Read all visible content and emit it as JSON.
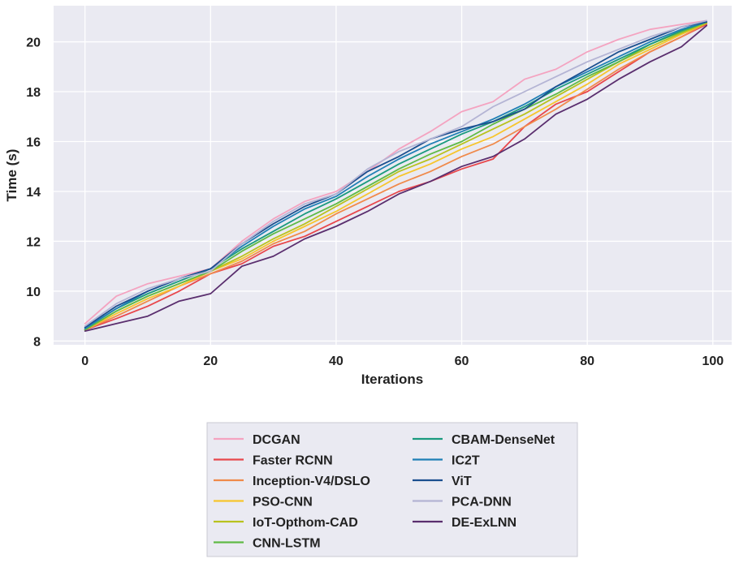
{
  "chart_data": {
    "type": "line",
    "title": "",
    "xlabel": "Iterations",
    "ylabel": "Time (s)",
    "xlim": [
      -5,
      103
    ],
    "ylim": [
      7.85,
      21.45
    ],
    "xticks": [
      0,
      20,
      40,
      60,
      80,
      100
    ],
    "yticks": [
      8,
      10,
      12,
      14,
      16,
      18,
      20
    ],
    "grid": true,
    "legend_position": "bottom-center",
    "legend_columns": 2,
    "x": [
      0,
      5,
      10,
      15,
      20,
      25,
      30,
      35,
      40,
      45,
      50,
      55,
      60,
      65,
      70,
      75,
      80,
      85,
      90,
      95,
      99
    ],
    "series": [
      {
        "name": "DCGAN",
        "color": "#f4a3c0",
        "values": [
          8.7,
          9.8,
          10.3,
          10.6,
          10.9,
          12.0,
          12.9,
          13.6,
          14.0,
          14.8,
          15.7,
          16.4,
          17.2,
          17.6,
          18.5,
          18.9,
          19.6,
          20.1,
          20.5,
          20.7,
          20.85
        ]
      },
      {
        "name": "Faster RCNN",
        "color": "#e8474c",
        "values": [
          8.45,
          8.9,
          9.4,
          10.0,
          10.7,
          11.1,
          11.8,
          12.2,
          12.8,
          13.4,
          14.0,
          14.4,
          14.9,
          15.3,
          16.6,
          17.5,
          18.0,
          18.8,
          19.6,
          20.2,
          20.7
        ]
      },
      {
        "name": "Inception-V4/DSLO",
        "color": "#f08a4b",
        "values": [
          8.45,
          9.0,
          9.6,
          10.2,
          10.7,
          11.2,
          11.9,
          12.4,
          13.1,
          13.7,
          14.3,
          14.8,
          15.4,
          15.9,
          16.6,
          17.3,
          18.1,
          18.9,
          19.6,
          20.2,
          20.75
        ]
      },
      {
        "name": "PSO-CNN",
        "color": "#f7c52c",
        "values": [
          8.45,
          9.1,
          9.7,
          10.2,
          10.8,
          11.3,
          12.0,
          12.6,
          13.2,
          13.9,
          14.6,
          15.1,
          15.7,
          16.2,
          16.9,
          17.6,
          18.3,
          19.1,
          19.7,
          20.3,
          20.75
        ]
      },
      {
        "name": "IoT-Opthom-CAD",
        "color": "#b8c21e",
        "values": [
          8.45,
          9.2,
          9.8,
          10.3,
          10.8,
          11.4,
          12.1,
          12.7,
          13.4,
          14.1,
          14.8,
          15.3,
          15.9,
          16.5,
          17.1,
          17.8,
          18.5,
          19.2,
          19.8,
          20.35,
          20.75
        ]
      },
      {
        "name": "CNN-LSTM",
        "color": "#5fba46",
        "values": [
          8.45,
          9.2,
          9.8,
          10.3,
          10.8,
          11.6,
          12.3,
          12.9,
          13.5,
          14.2,
          14.9,
          15.5,
          16.0,
          16.7,
          17.3,
          17.9,
          18.6,
          19.2,
          19.9,
          20.4,
          20.8
        ]
      },
      {
        "name": "CBAM-DenseNet",
        "color": "#1a9a7e",
        "values": [
          8.5,
          9.3,
          9.9,
          10.4,
          10.9,
          11.7,
          12.4,
          13.1,
          13.7,
          14.4,
          15.1,
          15.7,
          16.3,
          16.8,
          17.4,
          18.1,
          18.7,
          19.3,
          19.9,
          20.45,
          20.8
        ]
      },
      {
        "name": "IC2T",
        "color": "#1f7fb5",
        "values": [
          8.5,
          9.3,
          10.0,
          10.5,
          10.9,
          11.8,
          12.6,
          13.3,
          13.8,
          14.6,
          15.3,
          15.9,
          16.4,
          16.9,
          17.5,
          18.2,
          18.8,
          19.4,
          20.0,
          20.5,
          20.8
        ]
      },
      {
        "name": "ViT",
        "color": "#1b4f8f",
        "values": [
          8.55,
          9.4,
          10.0,
          10.5,
          10.9,
          11.9,
          12.7,
          13.4,
          13.9,
          14.8,
          15.4,
          16.1,
          16.5,
          16.8,
          17.3,
          18.2,
          18.9,
          19.6,
          20.1,
          20.6,
          20.8
        ]
      },
      {
        "name": "PCA-DNN",
        "color": "#b4b4d4",
        "values": [
          8.6,
          9.5,
          10.1,
          10.5,
          10.8,
          11.9,
          12.8,
          13.5,
          13.9,
          14.9,
          15.6,
          16.1,
          16.6,
          17.4,
          18.0,
          18.6,
          19.2,
          19.7,
          20.2,
          20.6,
          20.85
        ]
      },
      {
        "name": "DE-ExLNN",
        "color": "#5a2e6e",
        "values": [
          8.4,
          8.7,
          9.0,
          9.6,
          9.9,
          11.0,
          11.4,
          12.1,
          12.6,
          13.2,
          13.9,
          14.4,
          15.0,
          15.4,
          16.1,
          17.1,
          17.7,
          18.5,
          19.2,
          19.8,
          20.65
        ]
      }
    ]
  }
}
